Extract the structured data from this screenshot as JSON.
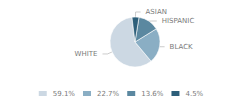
{
  "chart_data": {
    "type": "pie",
    "categories": [
      "WHITE",
      "BLACK",
      "HISPANIC",
      "ASIAN"
    ],
    "values": [
      59.1,
      22.7,
      13.6,
      4.5
    ],
    "value_labels": [
      "59.1%",
      "22.7%",
      "13.6%",
      "4.5%"
    ],
    "colors": [
      "#ccd8e3",
      "#8aaec4",
      "#5b88a0",
      "#2d5f7a"
    ],
    "legend": "bottom"
  }
}
